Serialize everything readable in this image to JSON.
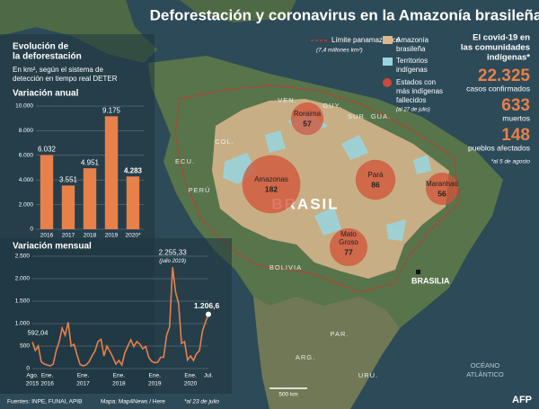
{
  "title": "Deforestación y coronavirus en la Amazonía brasileña",
  "left_heading": [
    "Evolución de",
    "la deforestación"
  ],
  "left_subheading": [
    "En km², según el sistema de",
    "detección en tiempo real DETER"
  ],
  "chart_data": [
    {
      "type": "bar",
      "title": "Variación anual",
      "categories": [
        "2016",
        "2017",
        "2018",
        "2019",
        "2020*"
      ],
      "values": [
        6032,
        3551,
        4951,
        9175,
        4283
      ],
      "value_labels": [
        "6.032",
        "3.551",
        "4.951",
        "9.175",
        "4.283"
      ],
      "color": "#e8804a",
      "ylim": [
        0,
        10000
      ],
      "yticks": [
        0,
        {
          "value": 2000,
          "label": "2.000"
        },
        {
          "value": 4000,
          "label": "4.000"
        },
        {
          "value": 6000,
          "label": "6.000"
        },
        {
          "value": 8000,
          "label": "8.000"
        },
        {
          "value": 10000,
          "label": "10.000"
        }
      ],
      "grid": true
    },
    {
      "type": "line",
      "title": "Variación mensual",
      "categories": [
        "Ago.",
        null,
        null,
        null,
        null,
        "Ene.",
        null,
        null,
        null,
        null,
        null,
        null,
        null,
        null,
        null,
        null,
        null,
        "Ene.",
        null,
        null,
        null,
        null,
        null,
        null,
        null,
        null,
        null,
        null,
        null,
        "Ene.",
        null,
        null,
        null,
        null,
        null,
        null,
        null,
        null,
        null,
        null,
        null,
        "Ene.",
        null,
        null,
        null,
        null,
        null,
        null,
        null,
        null,
        null,
        null,
        null,
        "Ene.",
        null,
        null,
        null,
        null,
        null,
        "Jul."
      ],
      "year_labels": [
        "2015",
        "2016",
        "2017",
        "2018",
        "2019",
        "2020"
      ],
      "values": [
        592.04,
        400,
        500,
        150,
        100,
        80,
        60,
        100,
        400,
        600,
        900,
        740,
        1030,
        500,
        540,
        300,
        90,
        60,
        80,
        150,
        280,
        390,
        600,
        650,
        280,
        500,
        380,
        250,
        100,
        180,
        80,
        350,
        500,
        640,
        490,
        600,
        545,
        440,
        490,
        250,
        160,
        130,
        140,
        250,
        250,
        740,
        930,
        2255.33,
        1700,
        1450,
        560,
        600,
        190,
        280,
        180,
        330,
        400,
        830,
        1030,
        1206.6
      ],
      "value_labels": [
        "592,04",
        null,
        null,
        null,
        null,
        null,
        null,
        null,
        null,
        null,
        null,
        null,
        null,
        null,
        null,
        null,
        null,
        null,
        null,
        null,
        null,
        null,
        null,
        null,
        null,
        null,
        null,
        null,
        null,
        null,
        null,
        null,
        null,
        null,
        null,
        null,
        null,
        null,
        null,
        null,
        null,
        null,
        null,
        null,
        null,
        null,
        null,
        "2.255,33",
        null,
        null,
        null,
        null,
        null,
        null,
        null,
        null,
        null,
        null,
        null,
        "1.206,6"
      ],
      "annotation": "(julio 2019)",
      "color": "#e8804a",
      "ylim": [
        0,
        2500
      ],
      "yticks": [
        0,
        500,
        {
          "value": 1000,
          "label": "1.000"
        },
        {
          "value": 1500,
          "label": "1.500"
        },
        {
          "value": 2000,
          "label": "2.000"
        },
        {
          "value": 2500,
          "label": "2.500"
        }
      ],
      "grid": true
    }
  ],
  "legend": {
    "boundary": "Límite panamazónico",
    "boundary_note": "(7,4 millones km²)",
    "amazon": [
      "Amazonía",
      "brasileña"
    ],
    "territories": [
      "Territorios",
      "indígenas"
    ],
    "states": [
      "Estados con",
      "más indígenas",
      "fallecidos"
    ],
    "states_note": "(al 27 de julio)"
  },
  "covid": {
    "heading": [
      "El covid-19 en",
      "las comunidades",
      "indígenas*"
    ],
    "stats": [
      {
        "value": "22.325",
        "label": "casos confirmados"
      },
      {
        "value": "633",
        "label": "muertos"
      },
      {
        "value": "148",
        "label": "pueblos afectados"
      }
    ],
    "note": "*al 5 de agosto"
  },
  "map": {
    "countries": [
      "VEN.",
      "GUY.",
      "SUR.",
      "GUA.",
      "COL.",
      "ECU.",
      "PERÚ",
      "BOLIVIA",
      "PAR.",
      "ARG.",
      "URU."
    ],
    "country_name": "BRASIL",
    "capital": "BRASILIA",
    "ocean": [
      "OCÉANO",
      "ATLÁNTICO"
    ],
    "scale": "500 km",
    "states": [
      {
        "name": "Roraima",
        "value": 57
      },
      {
        "name": "Amazonas",
        "value": 182
      },
      {
        "name": "Pará",
        "value": 86
      },
      {
        "name": "Maranhao",
        "value": 56
      },
      {
        "name": [
          "Mato",
          "Groso"
        ],
        "value": 77
      }
    ]
  },
  "footer": {
    "sources": "Fuentes: INPE, FUNAI, APIB",
    "map_credit": "Mapa: Map4News / Here",
    "note": "*al 23 de julio",
    "brand": "AFP"
  }
}
